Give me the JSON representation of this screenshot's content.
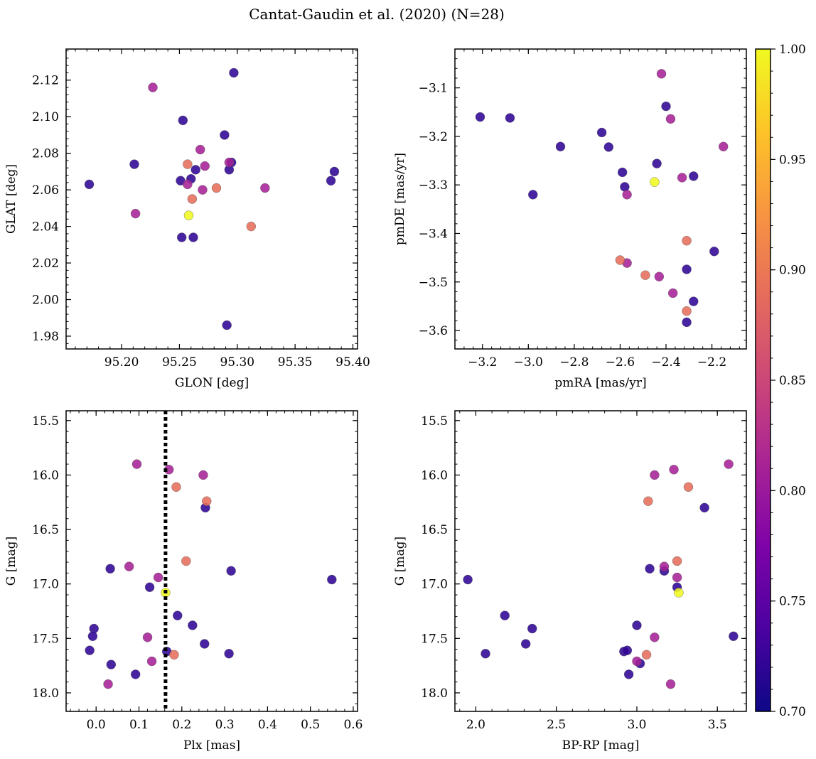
{
  "suptitle": "Cantat-Gaudin et al. (2020) (N=28)",
  "colorbar": {
    "vmin": 0.7,
    "vmax": 1.0,
    "ticks": [
      0.7,
      0.75,
      0.8,
      0.85,
      0.9,
      0.95,
      1.0
    ],
    "tick_labels": [
      "0.70",
      "0.75",
      "0.80",
      "0.85",
      "0.90",
      "0.95",
      "1.00"
    ],
    "colormap": "plasma"
  },
  "chart_data": [
    {
      "type": "scatter",
      "id": "glon-glat",
      "xlabel": "GLON [deg]",
      "ylabel": "GLAT [deg]",
      "xlim": [
        95.152,
        95.404
      ],
      "ylim": [
        1.973,
        2.137
      ],
      "xticks": [
        95.2,
        95.25,
        95.3,
        95.35,
        95.4
      ],
      "xtick_labels": [
        "95.20",
        "95.25",
        "95.30",
        "95.35",
        "95.40"
      ],
      "yticks": [
        1.98,
        2.0,
        2.02,
        2.04,
        2.06,
        2.08,
        2.1,
        2.12
      ],
      "ytick_labels": [
        "1.98",
        "2.00",
        "2.02",
        "2.04",
        "2.06",
        "2.08",
        "2.10",
        "2.12"
      ],
      "x": [
        95.172,
        95.211,
        95.253,
        95.26,
        95.264,
        95.251,
        95.262,
        95.297,
        95.289,
        95.293,
        95.295,
        95.291,
        95.381,
        95.384,
        95.227,
        95.212,
        95.268,
        95.272,
        95.257,
        95.27,
        95.293,
        95.324,
        95.257,
        95.261,
        95.282,
        95.312,
        95.258,
        95.252
      ],
      "y": [
        2.063,
        2.074,
        2.098,
        2.066,
        2.071,
        2.065,
        2.034,
        2.124,
        2.09,
        2.071,
        2.075,
        1.986,
        2.065,
        2.07,
        2.116,
        2.047,
        2.082,
        2.073,
        2.063,
        2.06,
        2.075,
        2.061,
        2.074,
        2.055,
        2.061,
        2.04,
        2.046,
        2.034
      ],
      "membership": [
        0.72,
        0.72,
        0.72,
        0.72,
        0.72,
        0.72,
        0.72,
        0.72,
        0.72,
        0.72,
        0.72,
        0.72,
        0.72,
        0.72,
        0.81,
        0.81,
        0.81,
        0.81,
        0.81,
        0.81,
        0.81,
        0.81,
        0.89,
        0.89,
        0.89,
        0.89,
        1.0,
        0.72
      ]
    },
    {
      "type": "scatter",
      "id": "pmra-pmde",
      "xlabel": "pmRA [mas/yr]",
      "ylabel": "pmDE [mas/yr]",
      "xlim": [
        -3.32,
        -2.05
      ],
      "ylim": [
        -3.638,
        -3.02
      ],
      "xticks": [
        -3.2,
        -3.0,
        -2.8,
        -2.6,
        -2.4,
        -2.2
      ],
      "xtick_labels": [
        "−3.2",
        "−3.0",
        "−2.8",
        "−2.6",
        "−2.4",
        "−2.2"
      ],
      "yticks": [
        -3.6,
        -3.5,
        -3.4,
        -3.3,
        -3.2,
        -3.1
      ],
      "ytick_labels": [
        "−3.6",
        "−3.5",
        "−3.4",
        "−3.3",
        "−3.2",
        "−3.1"
      ],
      "x": [
        -3.21,
        -3.08,
        -2.98,
        -2.86,
        -2.68,
        -2.65,
        -2.59,
        -2.58,
        -2.44,
        -2.4,
        -2.28,
        -2.19,
        -2.31,
        -2.28,
        -2.31,
        -2.42,
        -2.38,
        -2.15,
        -2.33,
        -2.57,
        -2.57,
        -2.43,
        -2.37,
        -2.6,
        -2.49,
        -2.31,
        -2.31,
        -2.45
      ],
      "y": [
        -3.16,
        -3.162,
        -3.32,
        -3.221,
        -3.192,
        -3.222,
        -3.274,
        -3.304,
        -3.256,
        -3.138,
        -3.282,
        -3.437,
        -3.474,
        -3.54,
        -3.583,
        -3.071,
        -3.164,
        -3.221,
        -3.285,
        -3.32,
        -3.461,
        -3.489,
        -3.523,
        -3.455,
        -3.486,
        -3.415,
        -3.56,
        -3.294
      ],
      "membership": [
        0.72,
        0.72,
        0.72,
        0.72,
        0.72,
        0.72,
        0.72,
        0.72,
        0.72,
        0.72,
        0.72,
        0.72,
        0.72,
        0.72,
        0.72,
        0.81,
        0.81,
        0.81,
        0.81,
        0.81,
        0.81,
        0.81,
        0.81,
        0.89,
        0.89,
        0.89,
        0.89,
        1.0
      ]
    },
    {
      "type": "scatter",
      "id": "plx-g",
      "xlabel": "Plx [mas]",
      "ylabel": "G [mag]",
      "xlim": [
        -0.07,
        0.61
      ],
      "ylim": [
        18.17,
        15.41
      ],
      "xticks": [
        0.0,
        0.1,
        0.2,
        0.3,
        0.4,
        0.5,
        0.6
      ],
      "xtick_labels": [
        "0.0",
        "0.1",
        "0.2",
        "0.3",
        "0.4",
        "0.5",
        "0.6"
      ],
      "yticks": [
        15.5,
        16.0,
        16.5,
        17.0,
        17.5,
        18.0
      ],
      "ytick_labels": [
        "15.5",
        "16.0",
        "16.5",
        "17.0",
        "17.5",
        "18.0"
      ],
      "vline": {
        "x": 0.162,
        "style": "dotted"
      },
      "x": [
        0.255,
        0.033,
        0.125,
        0.315,
        0.55,
        0.19,
        0.225,
        -0.005,
        -0.008,
        -0.015,
        0.253,
        0.035,
        0.092,
        0.31,
        0.165,
        0.095,
        0.17,
        0.25,
        0.077,
        0.145,
        0.12,
        0.13,
        0.028,
        0.187,
        0.258,
        0.21,
        0.182,
        0.162
      ],
      "y": [
        16.3,
        16.86,
        17.03,
        16.88,
        16.96,
        17.29,
        17.38,
        17.41,
        17.48,
        17.61,
        17.55,
        17.74,
        17.83,
        17.64,
        17.62,
        15.9,
        15.95,
        16.0,
        16.84,
        16.94,
        17.49,
        17.71,
        17.92,
        16.11,
        16.24,
        16.79,
        17.65,
        17.08
      ],
      "membership": [
        0.72,
        0.72,
        0.72,
        0.72,
        0.72,
        0.72,
        0.72,
        0.72,
        0.72,
        0.72,
        0.72,
        0.72,
        0.72,
        0.72,
        0.72,
        0.81,
        0.81,
        0.81,
        0.81,
        0.81,
        0.81,
        0.81,
        0.81,
        0.89,
        0.89,
        0.89,
        0.89,
        1.0
      ]
    },
    {
      "type": "scatter",
      "id": "bprp-g",
      "xlabel": "BP-RP [mag]",
      "ylabel": "G [mag]",
      "xlim": [
        1.87,
        3.68
      ],
      "ylim": [
        18.17,
        15.41
      ],
      "xticks": [
        2.0,
        2.5,
        3.0,
        3.5
      ],
      "xtick_labels": [
        "2.0",
        "2.5",
        "3.0",
        "3.5"
      ],
      "yticks": [
        15.5,
        16.0,
        16.5,
        17.0,
        17.5,
        18.0
      ],
      "ytick_labels": [
        "15.5",
        "16.0",
        "16.5",
        "17.0",
        "17.5",
        "18.0"
      ],
      "x": [
        1.95,
        2.18,
        2.06,
        2.35,
        2.31,
        2.92,
        2.95,
        2.94,
        3.0,
        3.02,
        3.08,
        3.17,
        3.25,
        3.42,
        3.6,
        3.57,
        3.11,
        3.23,
        3.17,
        3.25,
        3.11,
        3.0,
        3.21,
        3.32,
        3.07,
        3.25,
        3.06,
        3.26
      ],
      "y": [
        16.96,
        17.29,
        17.64,
        17.41,
        17.55,
        17.62,
        17.83,
        17.61,
        17.38,
        17.73,
        16.86,
        16.88,
        17.03,
        16.3,
        17.48,
        15.9,
        16.0,
        15.95,
        16.84,
        16.94,
        17.49,
        17.71,
        17.92,
        16.11,
        16.24,
        16.79,
        17.65,
        17.08
      ],
      "membership": [
        0.72,
        0.72,
        0.72,
        0.72,
        0.72,
        0.72,
        0.72,
        0.72,
        0.72,
        0.72,
        0.72,
        0.72,
        0.72,
        0.72,
        0.72,
        0.81,
        0.81,
        0.81,
        0.81,
        0.81,
        0.81,
        0.81,
        0.81,
        0.89,
        0.89,
        0.89,
        0.89,
        1.0
      ]
    }
  ]
}
